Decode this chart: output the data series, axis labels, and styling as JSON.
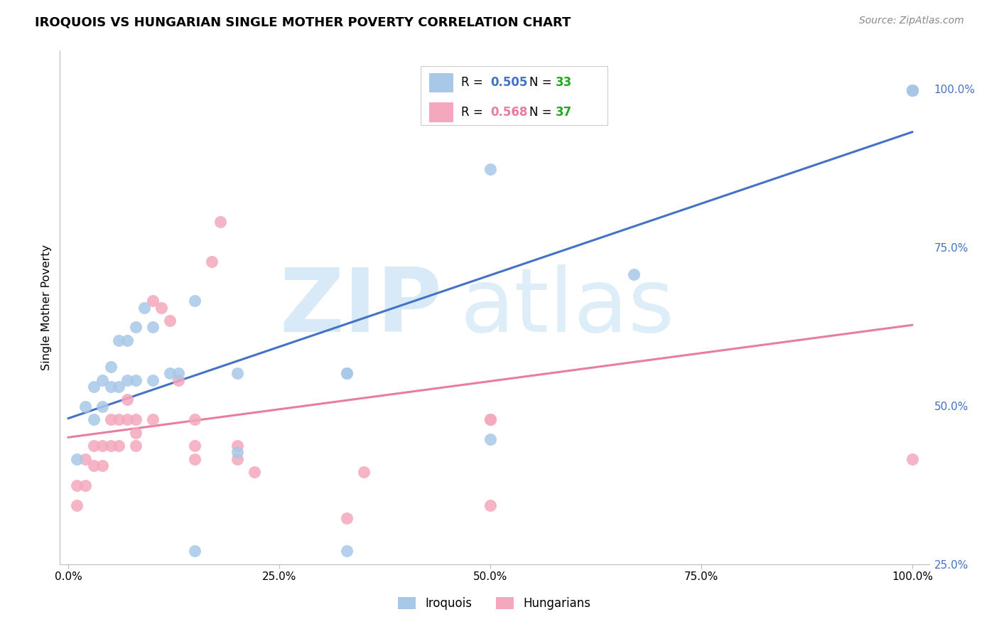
{
  "title": "IROQUOIS VS HUNGARIAN SINGLE MOTHER POVERTY CORRELATION CHART",
  "source": "Source: ZipAtlas.com",
  "ylabel": "Single Mother Poverty",
  "iroquois_R": 0.505,
  "iroquois_N": 33,
  "hungarian_R": 0.568,
  "hungarian_N": 37,
  "iroquois_color": "#a8c8e8",
  "hungarian_color": "#f4a8be",
  "iroquois_line_color": "#4472C4",
  "hungarian_line_color": "#E87DA0",
  "right_tick_color": "#4472C4",
  "background_color": "#ffffff",
  "grid_color": "#dddddd",
  "iroquois_x": [
    0.01,
    0.02,
    0.03,
    0.03,
    0.04,
    0.04,
    0.05,
    0.05,
    0.06,
    0.06,
    0.07,
    0.07,
    0.08,
    0.08,
    0.09,
    0.1,
    0.1,
    0.12,
    0.13,
    0.15,
    0.15,
    0.2,
    0.2,
    0.33,
    0.33,
    0.33,
    0.5,
    0.5,
    0.67,
    1.0,
    1.0,
    1.0,
    1.0
  ],
  "iroquois_y": [
    0.44,
    0.52,
    0.5,
    0.55,
    0.52,
    0.56,
    0.55,
    0.58,
    0.55,
    0.62,
    0.62,
    0.56,
    0.64,
    0.56,
    0.67,
    0.64,
    0.56,
    0.57,
    0.57,
    0.3,
    0.68,
    0.57,
    0.45,
    0.57,
    0.57,
    0.3,
    0.47,
    0.88,
    0.72,
    1.0,
    1.0,
    1.0,
    1.0
  ],
  "hungarian_x": [
    0.01,
    0.01,
    0.02,
    0.02,
    0.03,
    0.03,
    0.04,
    0.04,
    0.05,
    0.05,
    0.06,
    0.06,
    0.07,
    0.07,
    0.08,
    0.08,
    0.08,
    0.1,
    0.1,
    0.11,
    0.12,
    0.13,
    0.15,
    0.15,
    0.15,
    0.17,
    0.18,
    0.2,
    0.2,
    0.22,
    0.33,
    0.35,
    0.5,
    0.5,
    0.5,
    1.0,
    1.0
  ],
  "hungarian_y": [
    0.37,
    0.4,
    0.4,
    0.44,
    0.43,
    0.46,
    0.43,
    0.46,
    0.46,
    0.5,
    0.5,
    0.46,
    0.5,
    0.53,
    0.48,
    0.5,
    0.46,
    0.5,
    0.68,
    0.67,
    0.65,
    0.56,
    0.5,
    0.46,
    0.44,
    0.74,
    0.8,
    0.46,
    0.44,
    0.42,
    0.35,
    0.42,
    0.5,
    0.5,
    0.37,
    0.44,
    1.0
  ],
  "xlim": [
    0,
    1.0
  ],
  "ylim": [
    0.28,
    1.05
  ],
  "x_ticks": [
    0.0,
    0.25,
    0.5,
    0.75,
    1.0
  ],
  "y_ticks": [
    0.25,
    0.5,
    0.75,
    1.0
  ]
}
